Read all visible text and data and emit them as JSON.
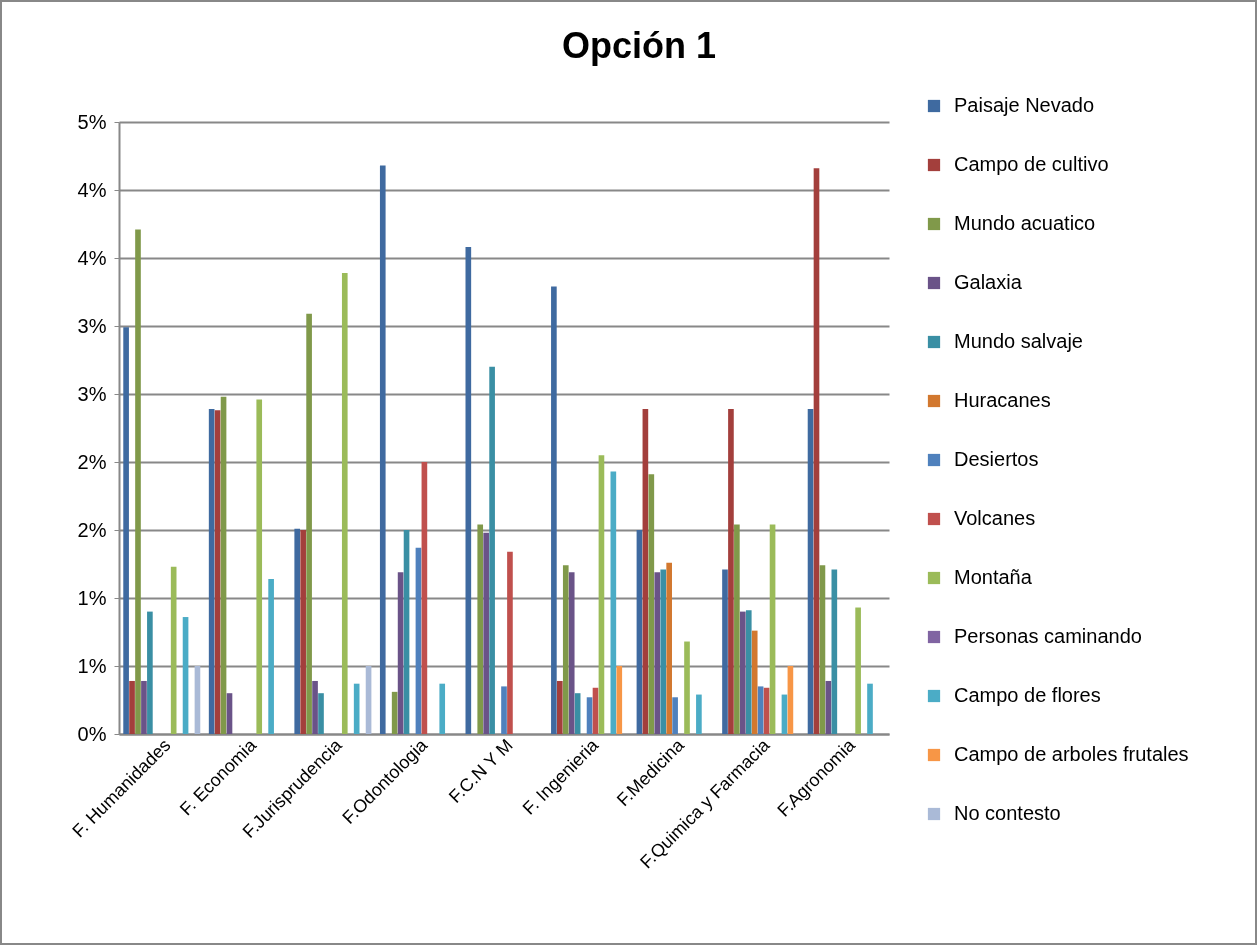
{
  "chart_data": {
    "type": "bar",
    "title": "Opción 1",
    "categories": [
      "F. Humanidades",
      "F. Economia",
      "F.Jurisprudencia",
      "F.Odontologia",
      "F.C.N Y M",
      "F. Ingenieria",
      "F.Medicina",
      "F.Quimica y Farmacia",
      "F.Agronomia"
    ],
    "series": [
      {
        "name": "Paisaje Nevado",
        "color": "#3f6aa0",
        "values": [
          2.99,
          2.39,
          1.51,
          4.18,
          3.58,
          3.29,
          1.5,
          1.21,
          2.39
        ]
      },
      {
        "name": "Campo de cultivo",
        "color": "#a33f3c",
        "values": [
          0.39,
          2.38,
          1.5,
          0,
          0,
          0.39,
          2.39,
          2.39,
          4.16
        ]
      },
      {
        "name": "Mundo acuatico",
        "color": "#80994a",
        "values": [
          3.71,
          2.48,
          3.09,
          0.31,
          1.54,
          1.24,
          1.91,
          1.54,
          1.24
        ]
      },
      {
        "name": "Galaxia",
        "color": "#6a5388",
        "values": [
          0.39,
          0.3,
          0.39,
          1.19,
          1.48,
          1.19,
          1.19,
          0.9,
          0.39
        ]
      },
      {
        "name": "Mundo salvaje",
        "color": "#3a8fa4",
        "values": [
          0.9,
          0,
          0.3,
          1.5,
          2.7,
          0.3,
          1.21,
          0.91,
          1.21
        ]
      },
      {
        "name": "Huracanes",
        "color": "#d2782f",
        "values": [
          0,
          0,
          0,
          0,
          0,
          0,
          1.26,
          0.76,
          0
        ]
      },
      {
        "name": "Desiertos",
        "color": "#4f81bd",
        "values": [
          0,
          0,
          0,
          1.37,
          0.35,
          0.27,
          0.27,
          0.35,
          0
        ]
      },
      {
        "name": "Volcanes",
        "color": "#c0504d",
        "values": [
          0,
          0,
          0,
          2.0,
          1.34,
          0.34,
          0,
          0.34,
          0
        ]
      },
      {
        "name": "Montaña",
        "color": "#9bbb59",
        "values": [
          1.23,
          2.46,
          3.39,
          0,
          0,
          2.05,
          0.68,
          1.54,
          0.93
        ]
      },
      {
        "name": "Personas caminando",
        "color": "#8064a2",
        "values": [
          0,
          0,
          0,
          0,
          0,
          0,
          0,
          0,
          0
        ]
      },
      {
        "name": "Campo de flores",
        "color": "#4bacc6",
        "values": [
          0.86,
          1.14,
          0.37,
          0.37,
          0,
          1.93,
          0.29,
          0.29,
          0.37
        ]
      },
      {
        "name": "Campo de arboles frutales",
        "color": "#f79646",
        "values": [
          0,
          0,
          0,
          0,
          0,
          0.5,
          0,
          0.5,
          0
        ]
      },
      {
        "name": "No contesto",
        "color": "#aabad7",
        "values": [
          0.5,
          0,
          0.5,
          0,
          0,
          0,
          0,
          0,
          0
        ]
      }
    ],
    "ylim": [
      0,
      4.5
    ],
    "yticks": [
      {
        "value": 0,
        "label": "0%"
      },
      {
        "value": 0.5,
        "label": "1%"
      },
      {
        "value": 1,
        "label": "1%"
      },
      {
        "value": 1.5,
        "label": "2%"
      },
      {
        "value": 2,
        "label": "2%"
      },
      {
        "value": 2.5,
        "label": "3%"
      },
      {
        "value": 3,
        "label": "3%"
      },
      {
        "value": 3.5,
        "label": "4%"
      },
      {
        "value": 4,
        "label": "4%"
      },
      {
        "value": 4.5,
        "label": "5%"
      }
    ],
    "grid": "y",
    "legend": "right"
  }
}
